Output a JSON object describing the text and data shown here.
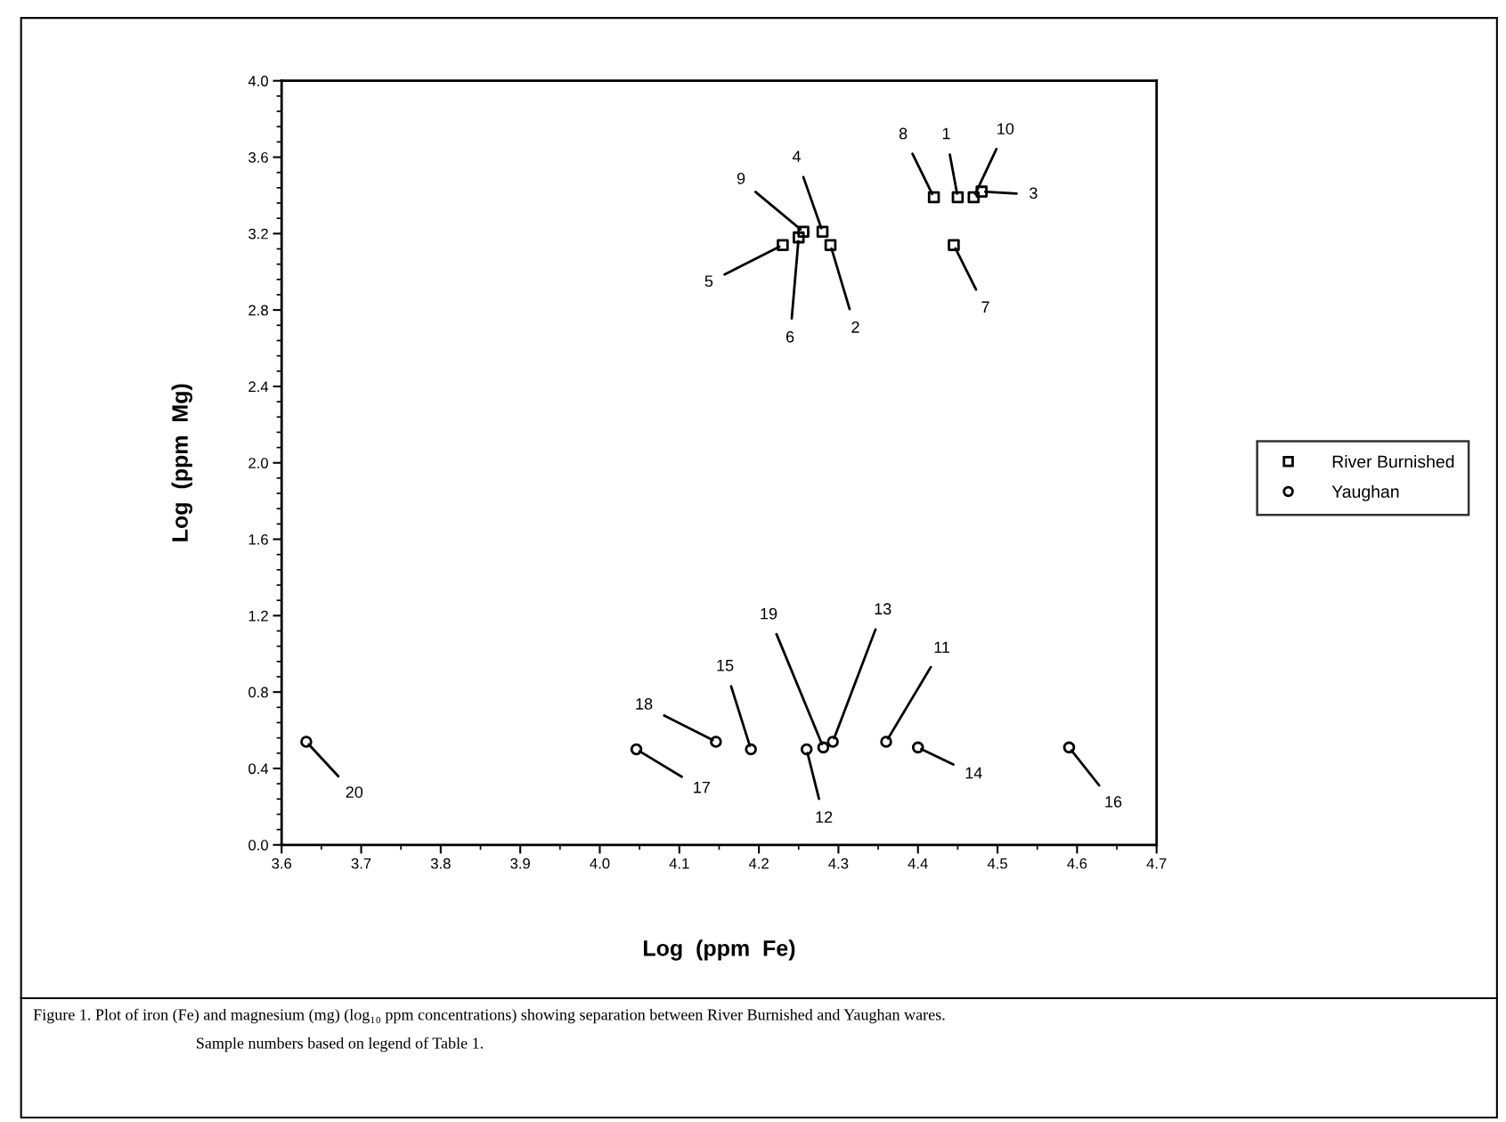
{
  "chart_data": {
    "type": "scatter",
    "xlabel": "Log  (ppm  Fe)",
    "ylabel": "Log  (ppm  Mg)",
    "series": [
      {
        "name": "River Burnished",
        "color": "#000000",
        "marker": "square",
        "x": [
          4.45,
          4.29,
          4.48,
          4.28,
          4.23,
          4.25,
          4.445,
          4.42,
          4.256,
          4.47
        ],
        "values": [
          3.39,
          3.14,
          3.42,
          3.21,
          3.14,
          3.18,
          3.14,
          3.39,
          3.21,
          3.39
        ]
      },
      {
        "name": "Yaughan",
        "color": "#000000",
        "marker": "circle",
        "x": [
          4.36,
          4.26,
          4.293,
          4.4,
          4.19,
          4.59,
          4.046,
          4.146,
          4.281,
          3.631
        ],
        "values": [
          0.54,
          0.5,
          0.54,
          0.51,
          0.5,
          0.51,
          0.5,
          0.54,
          0.51,
          0.54
        ]
      }
    ],
    "xlim": [
      3.6,
      4.7
    ],
    "xticks": [
      3.6,
      3.7,
      3.8,
      3.9,
      {
        "value": 4.0,
        "label": "4.0"
      },
      4.1,
      4.2,
      4.3,
      4.4,
      4.5,
      4.6,
      4.7
    ],
    "ylim": [
      0.0,
      4.0
    ],
    "yticks": [
      {
        "value": 0.0,
        "label": "0.0"
      },
      0.4,
      0.8,
      1.2,
      1.6,
      {
        "value": 2.0,
        "label": "2.0"
      },
      2.4,
      2.8,
      3.2,
      3.6,
      {
        "value": 4.0,
        "label": "4.0"
      }
    ],
    "grid": false,
    "legend": "right",
    "annotations": [
      {
        "text": "1",
        "x": 4.45,
        "y": 3.39
      },
      {
        "text": "2",
        "x": 4.29,
        "y": 3.14
      },
      {
        "text": "3",
        "x": 4.48,
        "y": 3.42
      },
      {
        "text": "4",
        "x": 4.28,
        "y": 3.21
      },
      {
        "text": "5",
        "x": 4.23,
        "y": 3.14
      },
      {
        "text": "6",
        "x": 4.25,
        "y": 3.18
      },
      {
        "text": "7",
        "x": 4.445,
        "y": 3.14
      },
      {
        "text": "8",
        "x": 4.42,
        "y": 3.39
      },
      {
        "text": "9",
        "x": 4.256,
        "y": 3.21
      },
      {
        "text": "10",
        "x": 4.47,
        "y": 3.39
      },
      {
        "text": "11",
        "x": 4.36,
        "y": 0.54
      },
      {
        "text": "12",
        "x": 4.26,
        "y": 0.5
      },
      {
        "text": "13",
        "x": 4.293,
        "y": 0.54
      },
      {
        "text": "14",
        "x": 4.4,
        "y": 0.51
      },
      {
        "text": "15",
        "x": 4.19,
        "y": 0.5
      },
      {
        "text": "16",
        "x": 4.59,
        "y": 0.51
      },
      {
        "text": "17",
        "x": 4.046,
        "y": 0.5
      },
      {
        "text": "18",
        "x": 4.146,
        "y": 0.54
      },
      {
        "text": "19",
        "x": 4.281,
        "y": 0.51
      },
      {
        "text": "20",
        "x": 3.631,
        "y": 0.54
      },
      "Figure 1. Plot of iron (Fe) and magnesium (mg) (log₁₀ ppm concentrations) showing separation between River Burnished and Yaughan wares.",
      "Sample numbers based on legend of Table 1."
    ]
  }
}
